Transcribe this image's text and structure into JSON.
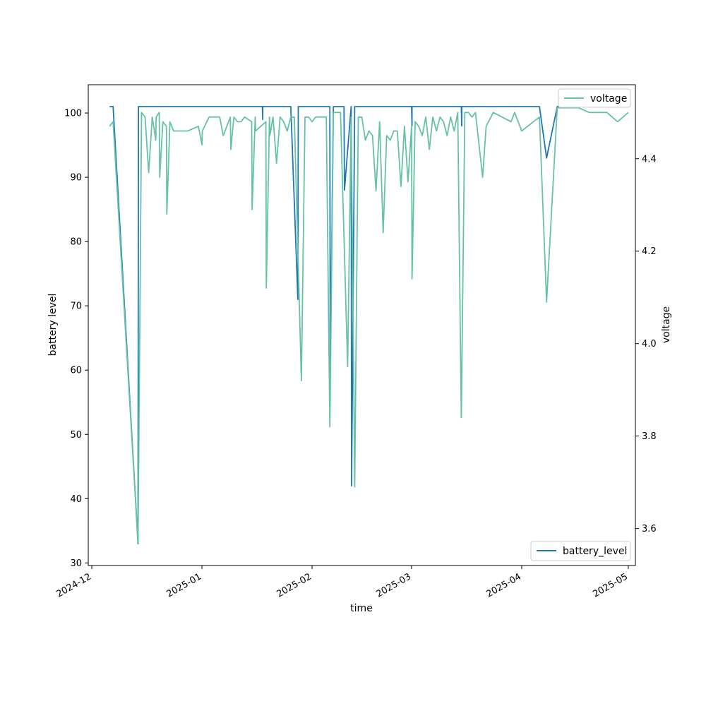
{
  "chart_data": {
    "type": "line",
    "xlabel": "time",
    "ylabel_left": "battery level",
    "ylabel_right": "voltage",
    "x_range": [
      "2024-11-30",
      "2025-05-03"
    ],
    "x_ticks": [
      "2024-12",
      "2025-01",
      "2025-02",
      "2025-03",
      "2025-04",
      "2025-05"
    ],
    "x_tick_dates": [
      "2024-12-01",
      "2025-01-01",
      "2025-02-01",
      "2025-03-01",
      "2025-04-01",
      "2025-05-01"
    ],
    "ylim_left": [
      29.6,
      104.4
    ],
    "y_ticks_left": [
      30,
      40,
      50,
      60,
      70,
      80,
      90,
      100
    ],
    "ylim_right": [
      3.52,
      4.56
    ],
    "y_ticks_right": [
      3.6,
      3.8,
      4.0,
      4.2,
      4.4
    ],
    "grid": false,
    "series": [
      {
        "name": "battery_level",
        "axis": "left",
        "color": "#1f77b4",
        "legend_position": "lower-right",
        "points": [
          [
            "2024-12-06",
            101
          ],
          [
            "2024-12-07",
            101
          ],
          [
            "2024-12-14",
            33
          ],
          [
            "2024-12-14",
            101
          ],
          [
            "2025-01-18",
            101
          ],
          [
            "2025-01-18",
            99
          ],
          [
            "2025-01-18",
            101
          ],
          [
            "2025-01-26",
            101
          ],
          [
            "2025-01-28",
            71
          ],
          [
            "2025-01-28",
            101
          ],
          [
            "2025-02-06",
            101
          ],
          [
            "2025-02-06",
            60
          ],
          [
            "2025-02-07",
            101
          ],
          [
            "2025-02-10",
            101
          ],
          [
            "2025-02-10",
            88
          ],
          [
            "2025-02-12",
            101
          ],
          [
            "2025-02-12",
            42
          ],
          [
            "2025-02-13",
            101
          ],
          [
            "2025-03-01",
            101
          ],
          [
            "2025-03-01",
            98
          ],
          [
            "2025-03-01",
            101
          ],
          [
            "2025-03-15",
            101
          ],
          [
            "2025-03-15",
            98
          ],
          [
            "2025-03-15",
            101
          ],
          [
            "2025-04-06",
            101
          ],
          [
            "2025-04-08",
            93
          ],
          [
            "2025-04-11",
            101
          ],
          [
            "2025-05-01",
            101
          ]
        ]
      },
      {
        "name": "voltage",
        "axis": "right",
        "color": "#66c2a5",
        "legend_position": "upper-right",
        "points": [
          [
            "2024-12-06",
            4.47
          ],
          [
            "2024-12-07",
            4.48
          ],
          [
            "2024-12-14",
            3.57
          ],
          [
            "2024-12-15",
            4.5
          ],
          [
            "2024-12-16",
            4.49
          ],
          [
            "2024-12-17",
            4.37
          ],
          [
            "2024-12-18",
            4.49
          ],
          [
            "2024-12-19",
            4.44
          ],
          [
            "2024-12-19",
            4.49
          ],
          [
            "2024-12-20",
            4.5
          ],
          [
            "2024-12-20",
            4.36
          ],
          [
            "2024-12-21",
            4.48
          ],
          [
            "2024-12-22",
            4.47
          ],
          [
            "2024-12-22",
            4.28
          ],
          [
            "2024-12-23",
            4.48
          ],
          [
            "2024-12-24",
            4.46
          ],
          [
            "2024-12-25",
            4.46
          ],
          [
            "2024-12-28",
            4.46
          ],
          [
            "2024-12-31",
            4.47
          ],
          [
            "2025-01-01",
            4.43
          ],
          [
            "2025-01-01",
            4.46
          ],
          [
            "2025-01-03",
            4.49
          ],
          [
            "2025-01-06",
            4.49
          ],
          [
            "2025-01-07",
            4.45
          ],
          [
            "2025-01-09",
            4.49
          ],
          [
            "2025-01-09",
            4.42
          ],
          [
            "2025-01-10",
            4.49
          ],
          [
            "2025-01-11",
            4.48
          ],
          [
            "2025-01-12",
            4.48
          ],
          [
            "2025-01-13",
            4.49
          ],
          [
            "2025-01-15",
            4.48
          ],
          [
            "2025-01-15",
            4.29
          ],
          [
            "2025-01-16",
            4.49
          ],
          [
            "2025-01-16",
            4.46
          ],
          [
            "2025-01-19",
            4.48
          ],
          [
            "2025-01-19",
            4.12
          ],
          [
            "2025-01-20",
            4.49
          ],
          [
            "2025-01-20",
            4.45
          ],
          [
            "2025-01-21",
            4.49
          ],
          [
            "2025-01-22",
            4.39
          ],
          [
            "2025-01-23",
            4.49
          ],
          [
            "2025-01-24",
            4.48
          ],
          [
            "2025-01-25",
            4.46
          ],
          [
            "2025-01-26",
            4.49
          ],
          [
            "2025-01-27",
            4.49
          ],
          [
            "2025-01-29",
            3.92
          ],
          [
            "2025-01-30",
            4.49
          ],
          [
            "2025-01-31",
            4.49
          ],
          [
            "2025-02-01",
            4.48
          ],
          [
            "2025-02-02",
            4.49
          ],
          [
            "2025-02-03",
            4.49
          ],
          [
            "2025-02-05",
            4.49
          ],
          [
            "2025-02-06",
            3.82
          ],
          [
            "2025-02-07",
            4.5
          ],
          [
            "2025-02-09",
            4.5
          ],
          [
            "2025-02-11",
            3.95
          ],
          [
            "2025-02-12",
            4.49
          ],
          [
            "2025-02-13",
            3.69
          ],
          [
            "2025-02-14",
            4.49
          ],
          [
            "2025-02-15",
            4.49
          ],
          [
            "2025-02-16",
            4.44
          ],
          [
            "2025-02-17",
            4.46
          ],
          [
            "2025-02-18",
            4.45
          ],
          [
            "2025-02-19",
            4.33
          ],
          [
            "2025-02-20",
            4.48
          ],
          [
            "2025-02-21",
            4.24
          ],
          [
            "2025-02-22",
            4.45
          ],
          [
            "2025-02-23",
            4.44
          ],
          [
            "2025-02-24",
            4.46
          ],
          [
            "2025-02-25",
            4.46
          ],
          [
            "2025-02-26",
            4.34
          ],
          [
            "2025-02-27",
            4.47
          ],
          [
            "2025-02-28",
            4.35
          ],
          [
            "2025-03-01",
            4.47
          ],
          [
            "2025-03-01",
            4.14
          ],
          [
            "2025-03-02",
            4.48
          ],
          [
            "2025-03-03",
            4.47
          ],
          [
            "2025-03-04",
            4.45
          ],
          [
            "2025-03-05",
            4.49
          ],
          [
            "2025-03-06",
            4.42
          ],
          [
            "2025-03-07",
            4.49
          ],
          [
            "2025-03-08",
            4.46
          ],
          [
            "2025-03-09",
            4.49
          ],
          [
            "2025-03-10",
            4.48
          ],
          [
            "2025-03-11",
            4.45
          ],
          [
            "2025-03-12",
            4.49
          ],
          [
            "2025-03-13",
            4.46
          ],
          [
            "2025-03-14",
            4.5
          ],
          [
            "2025-03-15",
            3.84
          ],
          [
            "2025-03-16",
            4.5
          ],
          [
            "2025-03-17",
            4.5
          ],
          [
            "2025-03-18",
            4.49
          ],
          [
            "2025-03-19",
            4.5
          ],
          [
            "2025-03-21",
            4.36
          ],
          [
            "2025-03-22",
            4.47
          ],
          [
            "2025-03-24",
            4.5
          ],
          [
            "2025-03-29",
            4.48
          ],
          [
            "2025-03-30",
            4.5
          ],
          [
            "2025-04-01",
            4.46
          ],
          [
            "2025-04-06",
            4.49
          ],
          [
            "2025-04-08",
            4.09
          ],
          [
            "2025-04-11",
            4.51
          ],
          [
            "2025-04-17",
            4.51
          ],
          [
            "2025-04-20",
            4.5
          ],
          [
            "2025-04-25",
            4.5
          ],
          [
            "2025-04-28",
            4.48
          ],
          [
            "2025-05-01",
            4.5
          ]
        ]
      }
    ]
  }
}
